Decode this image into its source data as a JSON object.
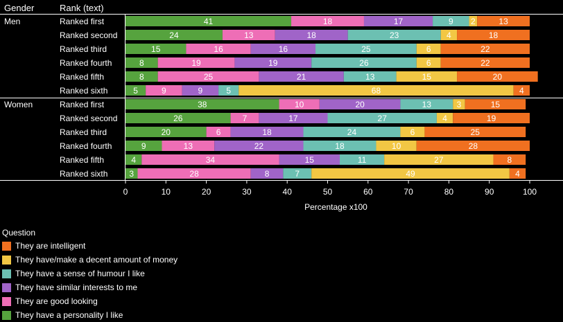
{
  "headers": {
    "gender": "Gender",
    "rank": "Rank (text)"
  },
  "chart_data": {
    "type": "bar",
    "orientation": "horizontal",
    "stacked": true,
    "xlabel": "Percentage x100",
    "xlim": [
      0,
      100
    ],
    "xticks": [
      0,
      10,
      20,
      30,
      40,
      50,
      60,
      70,
      80,
      90,
      100
    ],
    "legend_title": "Question",
    "legend_position": "bottom-left",
    "series": [
      {
        "name": "They have a personality I like",
        "color": "#56a33e"
      },
      {
        "name": "They are good looking",
        "color": "#ee6eb6"
      },
      {
        "name": "They have similar interests to me",
        "color": "#a064c8"
      },
      {
        "name": "They have a sense of humour I like",
        "color": "#6cc0b2"
      },
      {
        "name": "They have/make a decent amount of money",
        "color": "#f2c744"
      },
      {
        "name": "They are intelligent",
        "color": "#f07020"
      }
    ],
    "legend_order": [
      5,
      4,
      3,
      2,
      1,
      0
    ],
    "groups": [
      {
        "gender": "Men",
        "rows": [
          {
            "rank": "Ranked first",
            "values": [
              41,
              18,
              17,
              9,
              2,
              13
            ]
          },
          {
            "rank": "Ranked second",
            "values": [
              24,
              13,
              18,
              23,
              4,
              18
            ]
          },
          {
            "rank": "Ranked third",
            "values": [
              15,
              16,
              16,
              25,
              6,
              22
            ]
          },
          {
            "rank": "Ranked fourth",
            "values": [
              8,
              19,
              19,
              26,
              6,
              22
            ]
          },
          {
            "rank": "Ranked fifth",
            "values": [
              8,
              25,
              21,
              13,
              15,
              20
            ]
          },
          {
            "rank": "Ranked sixth",
            "values": [
              5,
              9,
              9,
              5,
              68,
              4
            ]
          }
        ]
      },
      {
        "gender": "Women",
        "rows": [
          {
            "rank": "Ranked first",
            "values": [
              38,
              10,
              20,
              13,
              3,
              15
            ]
          },
          {
            "rank": "Ranked second",
            "values": [
              26,
              7,
              17,
              27,
              4,
              19
            ]
          },
          {
            "rank": "Ranked third",
            "values": [
              20,
              6,
              18,
              24,
              6,
              25
            ]
          },
          {
            "rank": "Ranked fourth",
            "values": [
              9,
              13,
              22,
              18,
              10,
              28
            ]
          },
          {
            "rank": "Ranked fifth",
            "values": [
              4,
              34,
              15,
              11,
              27,
              8
            ]
          },
          {
            "rank": "Ranked sixth",
            "values": [
              3,
              28,
              8,
              7,
              49,
              4
            ]
          }
        ]
      }
    ]
  }
}
